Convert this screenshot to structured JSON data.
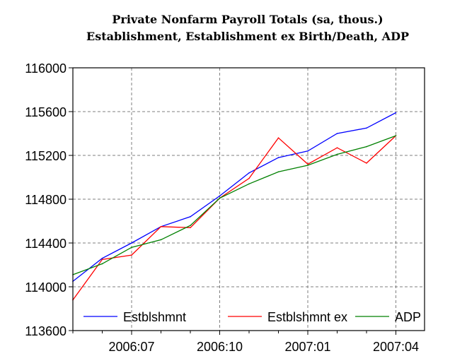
{
  "chart_data": {
    "type": "line",
    "title": "Private Nonfarm Payroll Totals (sa, thous.)",
    "subtitle": "Establishment, Establishment ex Birth/Death, ADP",
    "xlabel": "",
    "ylabel": "",
    "ylim": [
      113600,
      116000
    ],
    "yticks": [
      113600,
      114000,
      114400,
      114800,
      115200,
      115600,
      116000
    ],
    "x": [
      "2006:05",
      "2006:06",
      "2006:07",
      "2006:08",
      "2006:09",
      "2006:10",
      "2006:11",
      "2006:12",
      "2007:01",
      "2007:02",
      "2007:03",
      "2007:04",
      "2007:05"
    ],
    "xticks": [
      "2006:07",
      "2006:10",
      "2007:01",
      "2007:04"
    ],
    "grid": true,
    "legend": "bottom",
    "series": [
      {
        "name": "Estblshmnt",
        "color": "#0000ff",
        "values": [
          114050,
          114260,
          114400,
          114550,
          114640,
          114830,
          115040,
          115180,
          115240,
          115400,
          115450,
          115590,
          null
        ]
      },
      {
        "name": "Estblshmnt ex",
        "color": "#ff0000",
        "values": [
          113880,
          114250,
          114290,
          114550,
          114540,
          114810,
          114990,
          115360,
          115120,
          115270,
          115130,
          115380,
          null
        ]
      },
      {
        "name": "ADP",
        "color": "#008000",
        "values": [
          114110,
          114210,
          114360,
          114430,
          114560,
          114810,
          114940,
          115050,
          115110,
          115210,
          115280,
          115380,
          null
        ]
      }
    ]
  }
}
